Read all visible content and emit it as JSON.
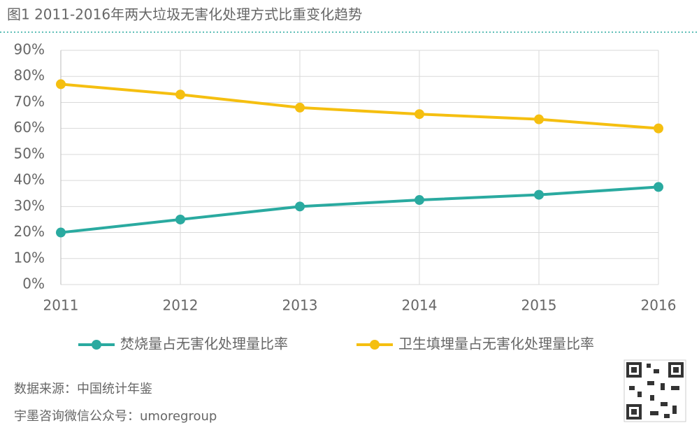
{
  "chart_data": {
    "type": "line",
    "title": "图1 2011-2016年两大垃圾无害化处理方式比重变化趋势",
    "categories": [
      "2011",
      "2012",
      "2013",
      "2014",
      "2015",
      "2016"
    ],
    "series": [
      {
        "name": "焚烧量占无害化处理量比率",
        "color": "#2aaaa0",
        "values": [
          20,
          25,
          30,
          32.5,
          34.5,
          37.5
        ]
      },
      {
        "name": "卫生填埋量占无害化处理量比率",
        "color": "#f5bf10",
        "values": [
          77,
          73,
          68,
          65.5,
          63.5,
          60
        ]
      }
    ],
    "ylim": [
      0,
      90
    ],
    "yticks": [
      {
        "value": 0,
        "label": "0%"
      },
      {
        "value": 10,
        "label": "10%"
      },
      {
        "value": 20,
        "label": "20%"
      },
      {
        "value": 30,
        "label": "30%"
      },
      {
        "value": 40,
        "label": "40%"
      },
      {
        "value": 50,
        "label": "50%"
      },
      {
        "value": 60,
        "label": "60%"
      },
      {
        "value": 70,
        "label": "70%"
      },
      {
        "value": 80,
        "label": "80%"
      },
      {
        "value": 90,
        "label": "90%"
      }
    ],
    "grid": true,
    "legend": "bottom",
    "notes": [
      "数据来源：中国统计年鉴",
      "宇墨咨询微信公众号：umoregroup"
    ]
  }
}
